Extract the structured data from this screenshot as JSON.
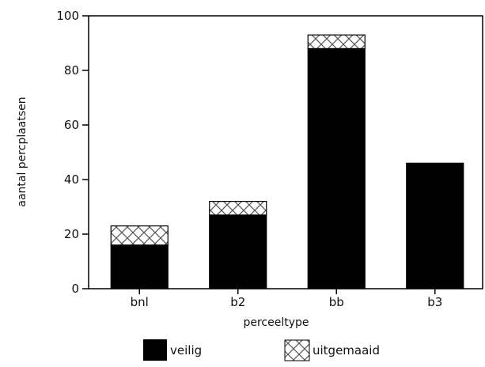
{
  "chart_data": {
    "type": "bar",
    "stacked": true,
    "categories": [
      "bnl",
      "b2",
      "bb",
      "b3"
    ],
    "series": [
      {
        "name": "veilig",
        "values": [
          16,
          27,
          88,
          46
        ],
        "color": "#000000",
        "pattern": "solid"
      },
      {
        "name": "uitgemaaid",
        "values": [
          7,
          5,
          5,
          0
        ],
        "color": "#ffffff",
        "pattern": "cross-hatch"
      }
    ],
    "xlabel": "perceeltype",
    "ylabel": "aantal percplaatsen",
    "ylim": [
      0,
      100
    ],
    "yticks": [
      0,
      20,
      40,
      60,
      80,
      100
    ],
    "grid": false,
    "legend_position": "bottom"
  }
}
